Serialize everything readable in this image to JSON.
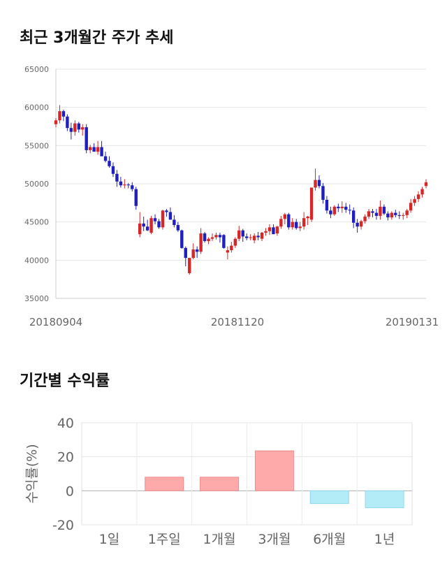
{
  "sections": {
    "price_title": "최근 3개월간 주가 추세",
    "returns_title": "기간별 수익률"
  },
  "chart_data": [
    {
      "type": "candlestick",
      "title": "최근 3개월간 주가 추세",
      "ylim": [
        35000,
        65000
      ],
      "y_ticks": [
        "65000",
        "60000",
        "55000",
        "50000",
        "45000",
        "40000",
        "35000"
      ],
      "x_tick_labels": [
        "20180904",
        "20181120",
        "20190131"
      ],
      "grid": true,
      "up_color": "#d62728",
      "down_color": "#1f1fbf",
      "candles": [
        [
          57800,
          58600,
          57400,
          58300
        ],
        [
          58300,
          60300,
          57900,
          59500
        ],
        [
          59500,
          59700,
          58200,
          58800
        ],
        [
          58800,
          59100,
          56900,
          57300
        ],
        [
          57300,
          58000,
          55800,
          56800
        ],
        [
          56800,
          58300,
          56300,
          57900
        ],
        [
          57900,
          58100,
          56700,
          57100
        ],
        [
          57100,
          57800,
          56300,
          57400
        ],
        [
          57400,
          57800,
          54000,
          54400
        ],
        [
          54400,
          55100,
          54000,
          54800
        ],
        [
          54800,
          55300,
          54200,
          54200
        ],
        [
          54200,
          55600,
          53800,
          54800
        ],
        [
          54800,
          55600,
          53700,
          53600
        ],
        [
          53600,
          54200,
          52800,
          53000
        ],
        [
          53000,
          53600,
          52100,
          52300
        ],
        [
          52300,
          52800,
          50900,
          51300
        ],
        [
          51300,
          51800,
          49600,
          50300
        ],
        [
          50300,
          50900,
          49500,
          49800
        ],
        [
          49800,
          50600,
          49400,
          49900
        ],
        [
          49900,
          50100,
          49400,
          49800
        ],
        [
          49800,
          50200,
          49000,
          49300
        ],
        [
          49300,
          49600,
          46600,
          47100
        ],
        [
          43400,
          46300,
          43000,
          44800
        ],
        [
          44800,
          45700,
          43800,
          44400
        ],
        [
          44400,
          45300,
          43800,
          43900
        ],
        [
          43600,
          45800,
          43400,
          45500
        ],
        [
          45500,
          46000,
          44700,
          45100
        ],
        [
          45100,
          45400,
          44100,
          44300
        ],
        [
          44300,
          46600,
          44000,
          46500
        ],
        [
          46500,
          46700,
          45700,
          46300
        ],
        [
          46300,
          46900,
          45300,
          45300
        ],
        [
          45300,
          45900,
          44300,
          44600
        ],
        [
          44600,
          45000,
          43700,
          43900
        ],
        [
          43900,
          44000,
          41500,
          41600
        ],
        [
          41600,
          41800,
          39200,
          40300
        ],
        [
          38300,
          40200,
          38100,
          40300
        ],
        [
          40300,
          42200,
          40100,
          41400
        ],
        [
          41400,
          41800,
          40300,
          41100
        ],
        [
          41100,
          44200,
          40800,
          43500
        ],
        [
          43500,
          43700,
          42300,
          42500
        ],
        [
          42500,
          43000,
          42100,
          42800
        ],
        [
          42800,
          43500,
          42500,
          43000
        ],
        [
          43000,
          43600,
          42700,
          43300
        ],
        [
          43300,
          43600,
          42300,
          43000
        ],
        [
          43300,
          43400,
          41500,
          41600
        ],
        [
          41000,
          41800,
          40100,
          41300
        ],
        [
          41300,
          42400,
          41000,
          41900
        ],
        [
          41900,
          43000,
          41600,
          42800
        ],
        [
          42800,
          44500,
          42500,
          43900
        ],
        [
          43900,
          44100,
          42400,
          43100
        ],
        [
          43100,
          43500,
          42600,
          42900
        ],
        [
          42900,
          43400,
          42600,
          43000
        ],
        [
          42600,
          43500,
          42200,
          43200
        ],
        [
          43200,
          43700,
          42600,
          43000
        ],
        [
          42800,
          43700,
          42500,
          43600
        ],
        [
          43600,
          44200,
          43200,
          43800
        ],
        [
          43800,
          44700,
          43300,
          44300
        ],
        [
          44300,
          44700,
          43500,
          43400
        ],
        [
          43500,
          44500,
          43200,
          44400
        ],
        [
          44400,
          45800,
          44100,
          45400
        ],
        [
          45400,
          46200,
          44700,
          46000
        ],
        [
          46000,
          46200,
          44000,
          44300
        ],
        [
          44300,
          45500,
          44000,
          45000
        ],
        [
          45000,
          45400,
          44000,
          44200
        ],
        [
          44200,
          45000,
          43800,
          44400
        ],
        [
          44400,
          46300,
          44000,
          45500
        ],
        [
          45500,
          45800,
          44600,
          45700
        ],
        [
          45300,
          49500,
          45000,
          49500
        ],
        [
          49500,
          52000,
          49100,
          50500
        ],
        [
          50500,
          51100,
          49400,
          49700
        ],
        [
          49700,
          50100,
          47400,
          47900
        ],
        [
          47900,
          48400,
          46100,
          46500
        ],
        [
          46500,
          47000,
          45500,
          46000
        ],
        [
          46000,
          47200,
          45800,
          47000
        ],
        [
          47000,
          47400,
          46300,
          46800
        ],
        [
          46800,
          47700,
          46200,
          47000
        ],
        [
          47000,
          47500,
          46200,
          46600
        ],
        [
          46600,
          47300,
          46000,
          46500
        ],
        [
          46500,
          46900,
          44200,
          44900
        ],
        [
          44900,
          45400,
          43600,
          44400
        ],
        [
          44400,
          45300,
          44000,
          45100
        ],
        [
          45100,
          46000,
          44800,
          45700
        ],
        [
          45700,
          46700,
          45400,
          46400
        ],
        [
          46400,
          46700,
          45600,
          46200
        ],
        [
          46200,
          46700,
          45300,
          45800
        ],
        [
          45800,
          47800,
          45300,
          47000
        ],
        [
          47000,
          47300,
          45900,
          46100
        ],
        [
          46100,
          46400,
          45200,
          45600
        ],
        [
          45600,
          46400,
          45300,
          46200
        ],
        [
          46200,
          46600,
          45600,
          45900
        ],
        [
          45900,
          46400,
          45400,
          45800
        ],
        [
          45800,
          46200,
          45300,
          45900
        ],
        [
          45900,
          46700,
          45500,
          46500
        ],
        [
          46500,
          48000,
          46200,
          47500
        ],
        [
          47500,
          48400,
          47100,
          48000
        ],
        [
          48000,
          49000,
          47600,
          48600
        ],
        [
          48600,
          49600,
          48200,
          49300
        ],
        [
          49700,
          50600,
          49400,
          50200
        ]
      ]
    },
    {
      "type": "bar",
      "title": "기간별 수익률",
      "ylabel": "수익률(%)",
      "ylim": [
        -20,
        40
      ],
      "y_ticks": [
        "40",
        "20",
        "0",
        "-20"
      ],
      "categories": [
        "1일",
        "1주일",
        "1개월",
        "3개월",
        "6개월",
        "1년"
      ],
      "values": [
        0,
        8,
        8,
        23.5,
        -7.5,
        -10
      ],
      "positive_color": "#ffaaaa",
      "negative_color": "#b3ecf7",
      "grid": true
    }
  ]
}
